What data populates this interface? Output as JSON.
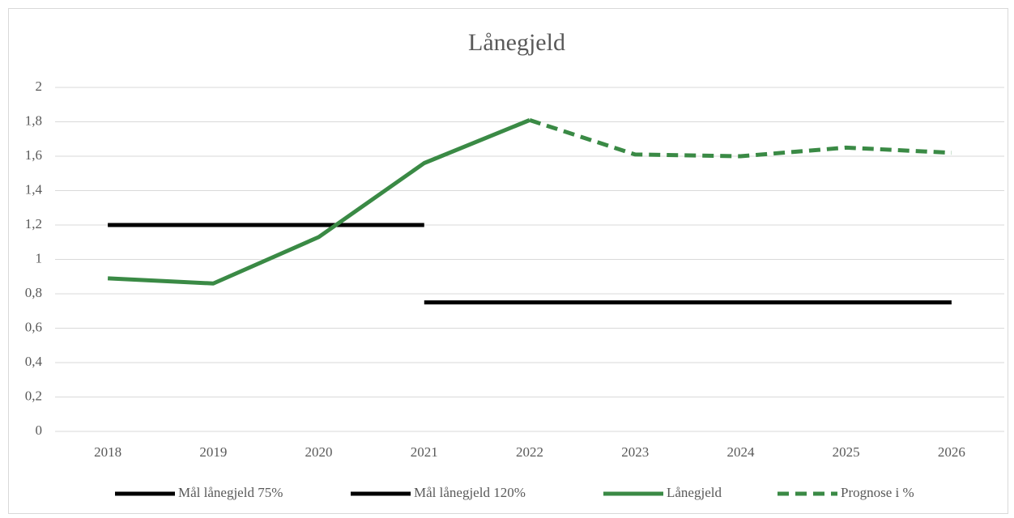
{
  "chart_data": {
    "type": "line",
    "title": "Lånegjeld",
    "categories": [
      "2018",
      "2019",
      "2020",
      "2021",
      "2022",
      "2023",
      "2024",
      "2025",
      "2026"
    ],
    "series": [
      {
        "name": "Mål lånegjeld 75%",
        "color": "#000000",
        "line_style": "solid",
        "values": [
          null,
          null,
          null,
          0.75,
          0.75,
          0.75,
          0.75,
          0.75,
          0.75
        ]
      },
      {
        "name": "Mål lånegjeld 120%",
        "color": "#000000",
        "line_style": "solid",
        "values": [
          1.2,
          1.2,
          1.2,
          1.2,
          null,
          null,
          null,
          null,
          null
        ]
      },
      {
        "name": "Lånegjeld",
        "color": "#3a8a45",
        "line_style": "solid",
        "values": [
          0.89,
          0.86,
          1.13,
          1.56,
          1.81,
          null,
          null,
          null,
          null
        ]
      },
      {
        "name": "Prognose i %",
        "color": "#3a8a45",
        "line_style": "dashed",
        "values": [
          null,
          null,
          null,
          null,
          1.81,
          1.61,
          1.6,
          1.65,
          1.62
        ]
      }
    ],
    "ylim": [
      0,
      2
    ],
    "yticks": [
      0,
      {
        "value": 0.2,
        "label": "0,2"
      },
      {
        "value": 0.4,
        "label": "0,4"
      },
      {
        "value": 0.6,
        "label": "0,6"
      },
      {
        "value": 0.8,
        "label": "0,8"
      },
      1,
      {
        "value": 1.2,
        "label": "1,2"
      },
      {
        "value": 1.4,
        "label": "1,4"
      },
      {
        "value": 1.6,
        "label": "1,6"
      },
      {
        "value": 1.8,
        "label": "1,8"
      },
      2
    ],
    "grid": true,
    "legend": "bottom"
  }
}
